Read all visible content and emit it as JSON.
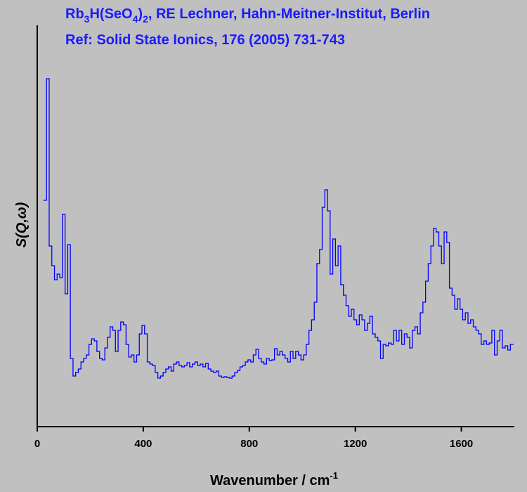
{
  "chart_data": {
    "type": "step",
    "title": [
      "Rb",
      "3",
      "H(SeO",
      "4",
      ")",
      "2",
      ", RE Lechner, Hahn-Meitner-Institut, Berlin"
    ],
    "subtitle": "Ref: Solid State Ionics, 176 (2005) 731-743",
    "x_label": [
      "Wavenumber / cm",
      "-1"
    ],
    "y_label": "S(Q,ω)",
    "color": "#0000ff",
    "xlim": [
      0,
      1800
    ],
    "xticks": [
      0,
      400,
      800,
      1200,
      1600
    ],
    "ylim": [
      0,
      571
    ],
    "x": [
      30,
      40,
      50,
      60,
      70,
      80,
      90,
      100,
      110,
      120,
      130,
      140,
      150,
      160,
      170,
      180,
      190,
      200,
      210,
      220,
      230,
      240,
      250,
      260,
      270,
      280,
      290,
      300,
      310,
      320,
      330,
      340,
      350,
      360,
      370,
      380,
      390,
      400,
      410,
      420,
      430,
      440,
      450,
      460,
      470,
      480,
      490,
      500,
      510,
      520,
      530,
      540,
      550,
      560,
      570,
      580,
      590,
      600,
      610,
      620,
      630,
      640,
      650,
      660,
      670,
      680,
      690,
      700,
      710,
      720,
      730,
      740,
      750,
      760,
      770,
      780,
      790,
      800,
      810,
      820,
      830,
      840,
      850,
      860,
      870,
      880,
      890,
      900,
      910,
      920,
      930,
      940,
      950,
      960,
      970,
      980,
      990,
      1000,
      1010,
      1020,
      1030,
      1040,
      1050,
      1060,
      1070,
      1080,
      1090,
      1100,
      1110,
      1120,
      1130,
      1140,
      1150,
      1160,
      1170,
      1180,
      1190,
      1200,
      1210,
      1220,
      1230,
      1240,
      1250,
      1260,
      1270,
      1280,
      1290,
      1300,
      1310,
      1320,
      1330,
      1340,
      1350,
      1360,
      1370,
      1380,
      1390,
      1400,
      1410,
      1420,
      1430,
      1440,
      1450,
      1460,
      1470,
      1480,
      1490,
      1500,
      1510,
      1520,
      1530,
      1540,
      1550,
      1560,
      1570,
      1580,
      1590,
      1600,
      1610,
      1620,
      1630,
      1640,
      1650,
      1660,
      1670,
      1680,
      1690,
      1700,
      1710,
      1720,
      1730,
      1740,
      1750,
      1760,
      1770,
      1780,
      1790
    ],
    "values": [
      322,
      495,
      257,
      229,
      209,
      217,
      212,
      302,
      189,
      259,
      97,
      72,
      77,
      82,
      92,
      97,
      102,
      117,
      125,
      122,
      107,
      97,
      95,
      112,
      127,
      142,
      137,
      107,
      137,
      149,
      145,
      117,
      99,
      102,
      92,
      102,
      132,
      144,
      132,
      92,
      89,
      87,
      77,
      69,
      72,
      77,
      82,
      85,
      79,
      89,
      92,
      87,
      85,
      87,
      91,
      85,
      89,
      92,
      87,
      89,
      85,
      90,
      82,
      79,
      77,
      79,
      72,
      70,
      71,
      70,
      69,
      72,
      77,
      80,
      85,
      87,
      92,
      95,
      92,
      102,
      110,
      97,
      92,
      89,
      97,
      94,
      95,
      111,
      102,
      107,
      102,
      97,
      92,
      107,
      97,
      107,
      102,
      95,
      102,
      117,
      137,
      152,
      177,
      232,
      252,
      312,
      337,
      307,
      217,
      267,
      229,
      257,
      202,
      187,
      172,
      157,
      167,
      152,
      145,
      159,
      152,
      137,
      147,
      157,
      132,
      127,
      122,
      97,
      117,
      115,
      119,
      117,
      137,
      122,
      137,
      117,
      132,
      127,
      112,
      137,
      142,
      132,
      162,
      177,
      207,
      232,
      257,
      282,
      277,
      257,
      232,
      277,
      262,
      197,
      187,
      167,
      182,
      167,
      152,
      162,
      147,
      152,
      142,
      137,
      132,
      117,
      122,
      117,
      119,
      137,
      102,
      122,
      137,
      112,
      115,
      109,
      117
    ]
  }
}
